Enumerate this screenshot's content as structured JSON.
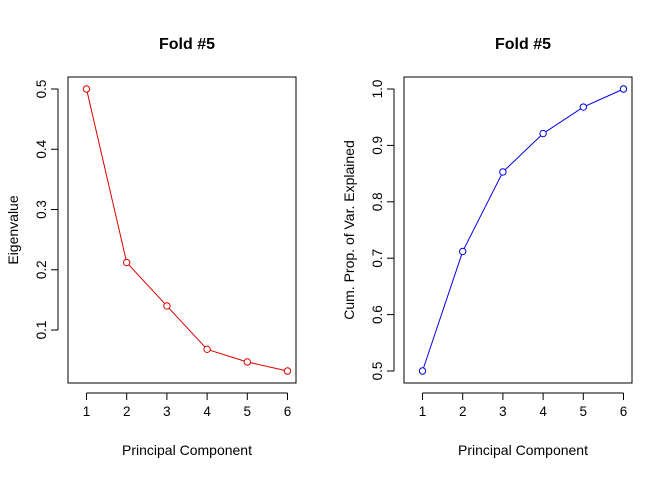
{
  "chart_data": [
    {
      "type": "line",
      "title": "Fold #5",
      "xlabel": "Principal Component",
      "ylabel": "Eigenvalue",
      "color": "#dd0000",
      "marker": "open-circle",
      "x": [
        1,
        2,
        3,
        4,
        5,
        6
      ],
      "values": [
        0.5,
        0.212,
        0.14,
        0.068,
        0.047,
        0.032
      ],
      "xlim": [
        1,
        6
      ],
      "ylim": [
        0.032,
        0.5
      ],
      "xticks": [
        1,
        2,
        3,
        4,
        5,
        6
      ],
      "yticks": [
        0.1,
        0.2,
        0.3,
        0.4,
        0.5
      ],
      "xtick_labels": [
        "1",
        "2",
        "3",
        "4",
        "5",
        "6"
      ],
      "ytick_labels": [
        "0.1",
        "0.2",
        "0.3",
        "0.4",
        "0.5"
      ],
      "grid": false
    },
    {
      "type": "line",
      "title": "Fold #5",
      "xlabel": "Principal Component",
      "ylabel": "Cum. Prop. of Var. Explained",
      "color": "#0000dd",
      "marker": "open-circle",
      "x": [
        1,
        2,
        3,
        4,
        5,
        6
      ],
      "values": [
        0.5,
        0.712,
        0.853,
        0.921,
        0.968,
        1.0
      ],
      "xlim": [
        1,
        6
      ],
      "ylim": [
        0.5,
        1.0
      ],
      "xticks": [
        1,
        2,
        3,
        4,
        5,
        6
      ],
      "yticks": [
        0.5,
        0.6,
        0.7,
        0.8,
        0.9,
        1.0
      ],
      "xtick_labels": [
        "1",
        "2",
        "3",
        "4",
        "5",
        "6"
      ],
      "ytick_labels": [
        "0.5",
        "0.6",
        "0.7",
        "0.8",
        "0.9",
        "1.0"
      ],
      "grid": false
    }
  ]
}
